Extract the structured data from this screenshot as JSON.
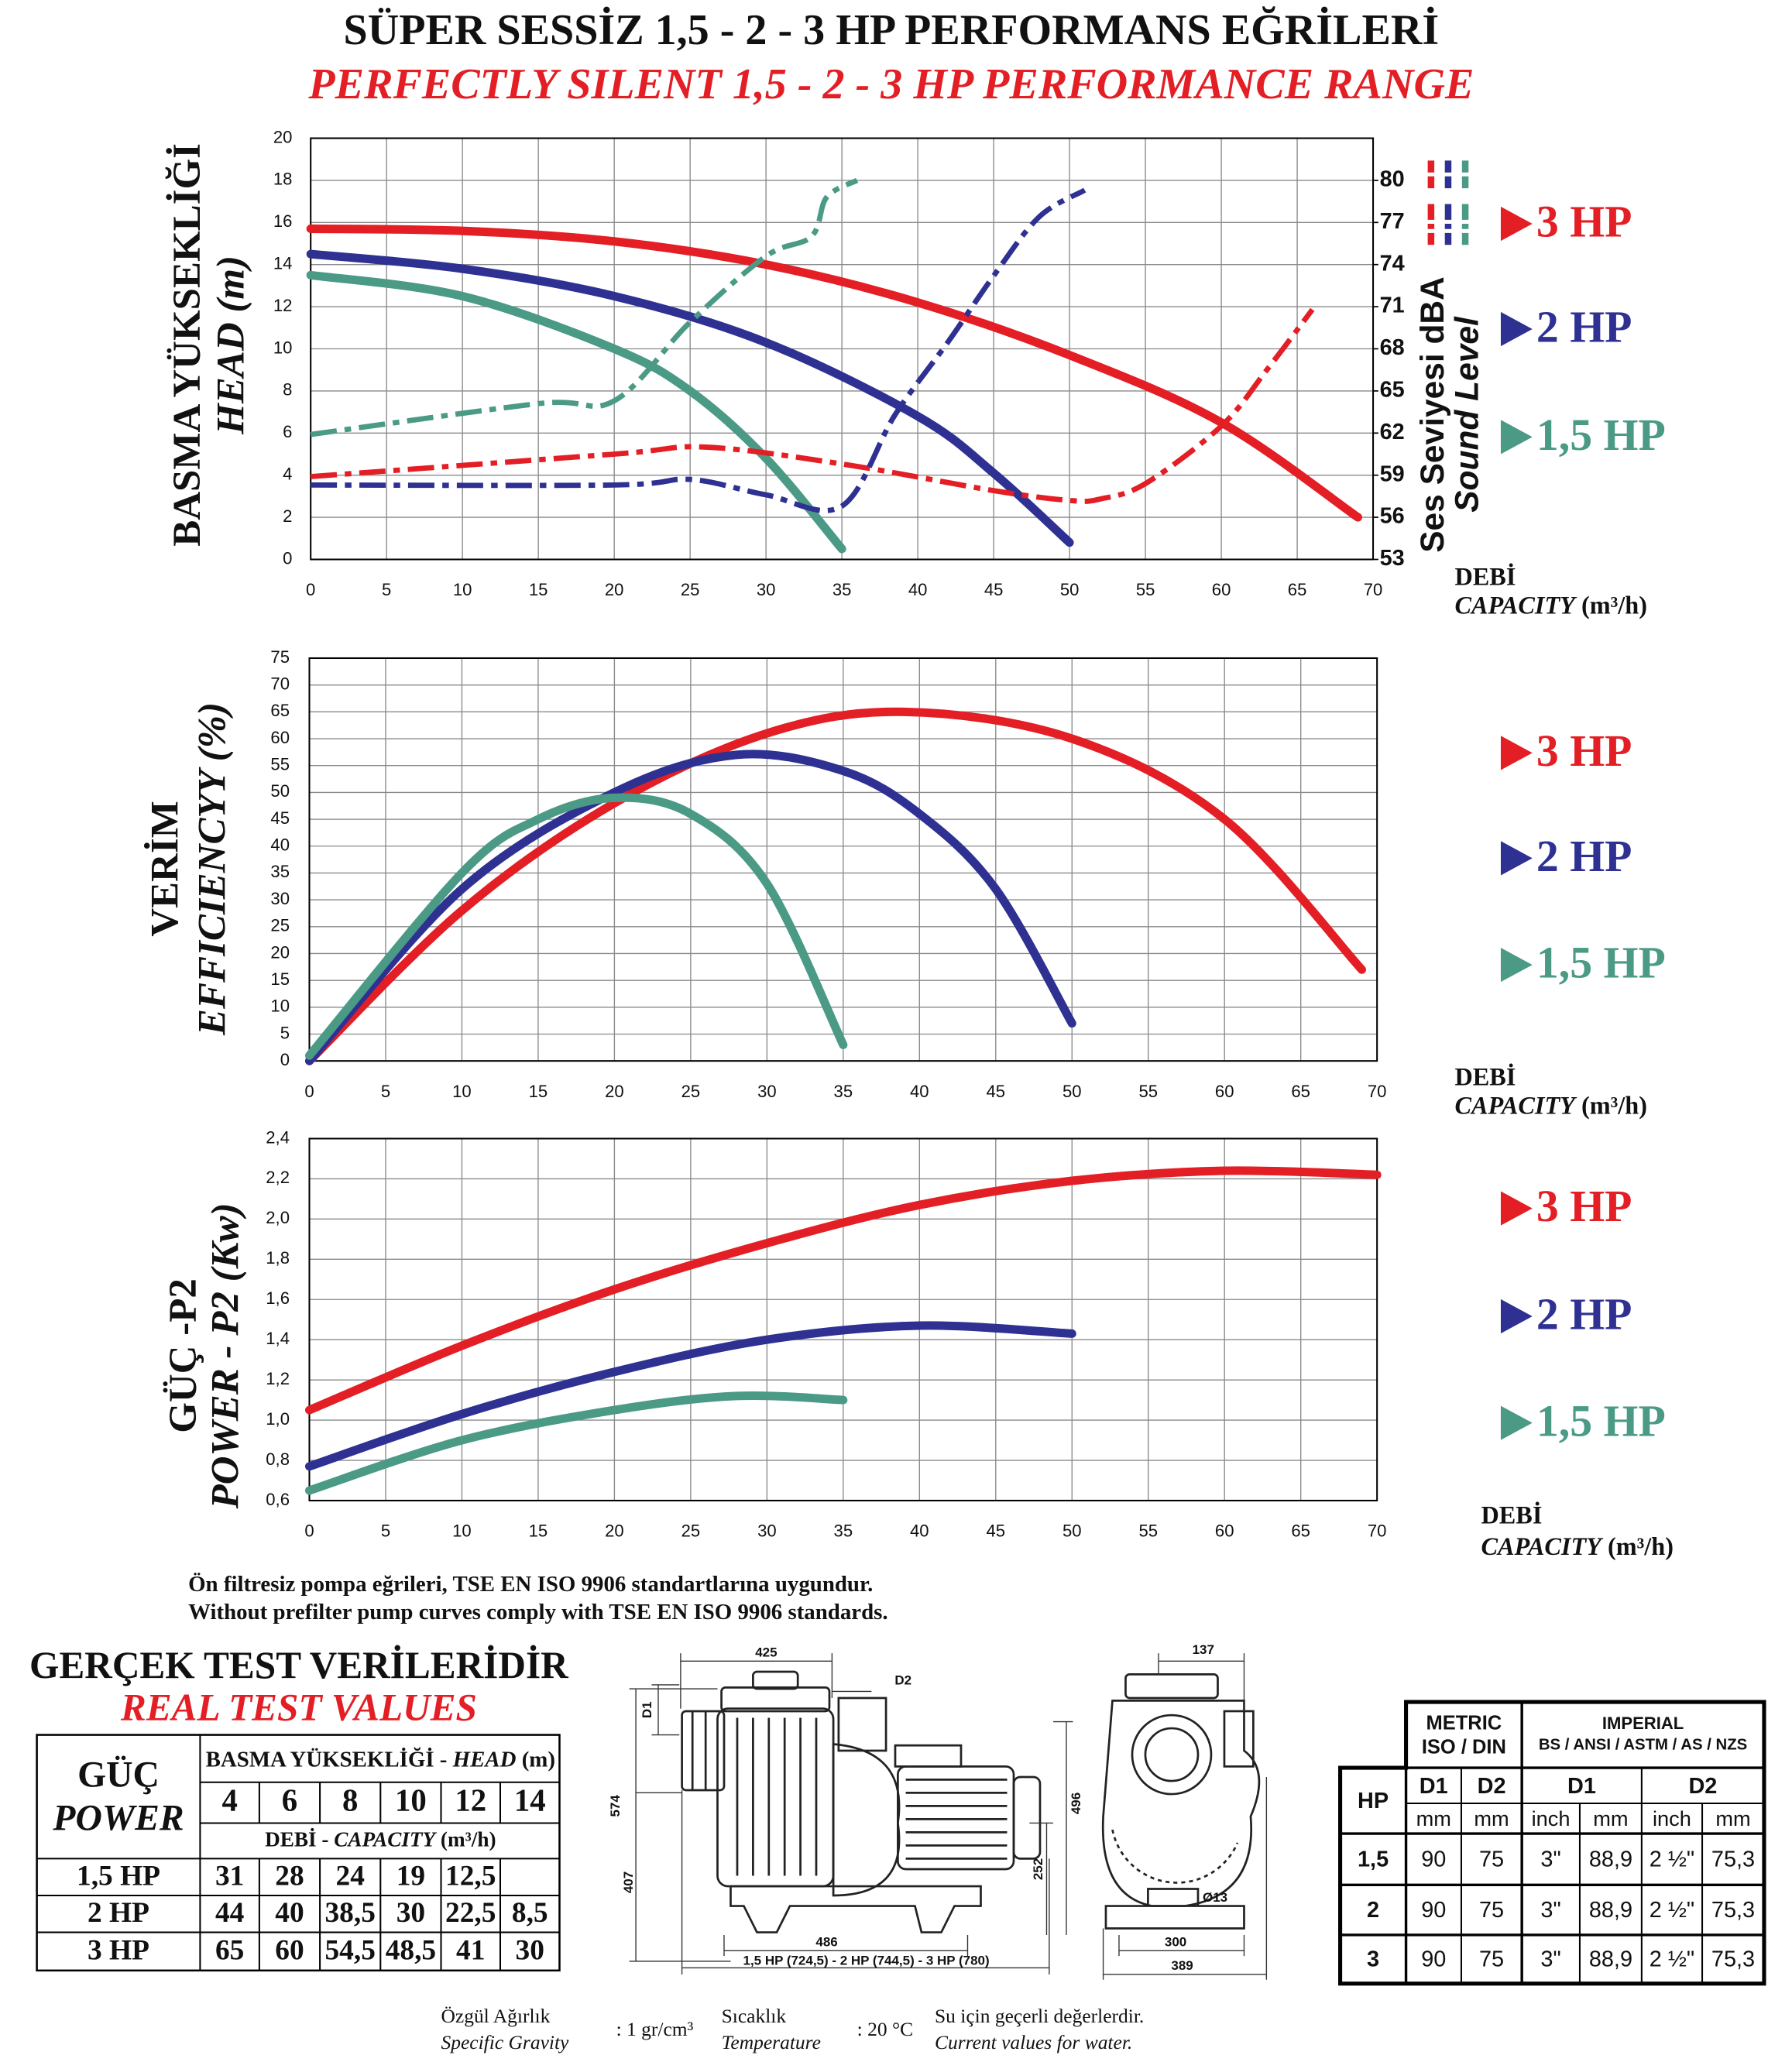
{
  "title": "SÜPER SESSİZ 1,5 - 2 - 3 HP PERFORMANS EĞRİLERİ",
  "subtitle": "PERFECTLY SILENT 1,5 - 2 - 3 HP PERFORMANCE RANGE",
  "chart_data": [
    {
      "type": "line",
      "y_label": "BASMA YÜKSEKLİĞİ",
      "y_label_en": "HEAD (m)",
      "y2_label": "Ses Seviyesi dBA",
      "y2_label_en": "Sound Level",
      "x_label": "DEBİ",
      "x_label_en": "CAPACITY",
      "x_unit": "(m³/h)",
      "xlim": [
        0,
        70
      ],
      "xticks": [
        0,
        5,
        10,
        15,
        20,
        25,
        30,
        35,
        40,
        45,
        50,
        55,
        60,
        65,
        70
      ],
      "ylim": [
        0,
        20
      ],
      "yticks": [
        0,
        2,
        4,
        6,
        8,
        10,
        12,
        14,
        16,
        18,
        20
      ],
      "y2lim": [
        53,
        83
      ],
      "y2ticks": [
        53,
        56,
        59,
        62,
        65,
        68,
        71,
        74,
        77,
        80
      ],
      "grid": true,
      "series": [
        {
          "name": "3 HP",
          "color": "#e31e24",
          "x": [
            0,
            10,
            20,
            30,
            40,
            50,
            60,
            69
          ],
          "values": [
            15.7,
            15.6,
            15.1,
            14,
            12.2,
            9.7,
            6.5,
            2.0
          ]
        },
        {
          "name": "2 HP",
          "color": "#2e3192",
          "x": [
            0,
            10,
            20,
            30,
            40,
            45,
            50
          ],
          "values": [
            14.5,
            13.8,
            12.5,
            10.3,
            6.8,
            4.1,
            0.8
          ]
        },
        {
          "name": "1,5 HP",
          "color": "#4a9a86",
          "x": [
            0,
            10,
            20,
            25,
            30,
            35
          ],
          "values": [
            13.5,
            12.5,
            10,
            8,
            4.8,
            0.5
          ]
        },
        {
          "color": "#e31e24",
          "axis": "y2",
          "style": "dash-dot",
          "x": [
            0,
            20,
            26,
            35,
            45,
            50,
            52,
            55,
            60,
            63,
            66
          ],
          "values": [
            58.9,
            60.5,
            61,
            59.8,
            57.9,
            57.2,
            57.3,
            58.4,
            62.5,
            66.5,
            70.8
          ]
        },
        {
          "color": "#2e3192",
          "axis": "y2",
          "style": "dash-dot",
          "x": [
            0,
            20,
            25,
            30,
            35,
            38.5,
            42,
            45,
            48,
            51
          ],
          "values": [
            58.3,
            58.3,
            58.7,
            57.6,
            56.8,
            63.3,
            68.5,
            73.2,
            77.4,
            79.3
          ]
        },
        {
          "color": "#4a9a86",
          "axis": "y2",
          "style": "dash-dot",
          "x": [
            0,
            15,
            20,
            25,
            30,
            33,
            34,
            36
          ],
          "values": [
            61.9,
            64.1,
            64.3,
            69.9,
            74.6,
            76,
            78.8,
            80
          ]
        }
      ]
    },
    {
      "type": "line",
      "y_label": "VERİM",
      "y_label_en": "EFFICIENCYY (%)",
      "x_label": "DEBİ",
      "x_label_en": "CAPACITY",
      "x_unit": "(m³/h)",
      "xlim": [
        0,
        70
      ],
      "xticks": [
        0,
        5,
        10,
        15,
        20,
        25,
        30,
        35,
        40,
        45,
        50,
        55,
        60,
        65,
        70
      ],
      "ylim": [
        0,
        75
      ],
      "yticks": [
        0,
        5,
        10,
        15,
        20,
        25,
        30,
        35,
        40,
        45,
        50,
        55,
        60,
        65,
        70,
        75
      ],
      "grid": true,
      "series": [
        {
          "name": "3 HP",
          "color": "#e31e24",
          "x": [
            0,
            10,
            20,
            30,
            39,
            50,
            60,
            69
          ],
          "values": [
            0,
            28,
            48,
            61,
            65,
            60,
            45,
            17
          ]
        },
        {
          "name": "2 HP",
          "color": "#2e3192",
          "x": [
            0,
            10,
            20,
            28,
            35,
            40,
            45,
            50
          ],
          "values": [
            0,
            32,
            50,
            57,
            54,
            46,
            32,
            7
          ]
        },
        {
          "name": "1,5 HP",
          "color": "#4a9a86",
          "x": [
            0,
            10,
            15,
            20,
            25,
            30,
            35
          ],
          "values": [
            1,
            35,
            45,
            49,
            46,
            33,
            3
          ]
        }
      ]
    },
    {
      "type": "line",
      "y_label": "GÜÇ -P2",
      "y_label_en": "POWER - P2 (Kw)",
      "x_label": "DEBİ",
      "x_label_en": "CAPACITY",
      "x_unit": "(m³/h)",
      "xlim": [
        0,
        70
      ],
      "xticks": [
        0,
        5,
        10,
        15,
        20,
        25,
        30,
        35,
        40,
        45,
        50,
        55,
        60,
        65,
        70
      ],
      "ylim": [
        0.6,
        2.4
      ],
      "yticks": [
        {
          "value": 0.6,
          "label": "0,6"
        },
        {
          "value": 0.8,
          "label": "0,8"
        },
        {
          "value": 1.0,
          "label": "1,0"
        },
        {
          "value": 1.2,
          "label": "1,2"
        },
        {
          "value": 1.4,
          "label": "1,4"
        },
        {
          "value": 1.6,
          "label": "1,6"
        },
        {
          "value": 1.8,
          "label": "1,8"
        },
        {
          "value": 2.0,
          "label": "2,0"
        },
        {
          "value": 2.2,
          "label": "2,2"
        },
        {
          "value": 2.4,
          "label": "2,4"
        }
      ],
      "grid": true,
      "series": [
        {
          "name": "3 HP",
          "color": "#e31e24",
          "x": [
            0,
            10,
            20,
            30,
            40,
            50,
            60,
            70
          ],
          "values": [
            1.05,
            1.37,
            1.65,
            1.88,
            2.07,
            2.19,
            2.24,
            2.22
          ]
        },
        {
          "name": "2 HP",
          "color": "#2e3192",
          "x": [
            0,
            10,
            20,
            30,
            40,
            50
          ],
          "values": [
            0.77,
            1.03,
            1.24,
            1.4,
            1.47,
            1.43
          ]
        },
        {
          "name": "1,5 HP",
          "color": "#4a9a86",
          "x": [
            0,
            10,
            20,
            28,
            35
          ],
          "values": [
            0.65,
            0.9,
            1.05,
            1.12,
            1.1
          ]
        }
      ]
    }
  ],
  "notes": [
    "Ön filtresiz pompa eğrileri, TSE EN ISO 9906 standartlarına uygundur.",
    "Without prefilter pump curves comply with TSE EN ISO 9906 standards."
  ],
  "test_table": {
    "title": "GERÇEK TEST VERİLERİDİR",
    "subtitle": "REAL TEST VALUES",
    "power_label": "GÜÇ",
    "power_label_en": "POWER",
    "head_label": "BASMA YÜKSEKLİĞİ -",
    "head_label_en": "HEAD",
    "head_unit": "(m)",
    "heads": [
      4,
      6,
      8,
      10,
      12,
      14
    ],
    "capacity_label": "DEBİ -",
    "capacity_label_en": "CAPACITY",
    "capacity_unit": "(m³/h)",
    "rows": [
      [
        "1,5 HP",
        31,
        28,
        24,
        19,
        "12,5",
        null
      ],
      [
        "2 HP",
        44,
        40,
        "38,5",
        30,
        "22,5",
        "8,5"
      ],
      [
        "3 HP",
        65,
        60,
        "54,5",
        "48,5",
        41,
        30
      ]
    ]
  },
  "drawing": {
    "width_top": 425,
    "d1": "D1",
    "d2": "D2",
    "h_total": 574,
    "h_inlet": 407,
    "h_motor": 496,
    "h_outlet": 252,
    "base": 486,
    "length": "1,5 HP (724,5) - 2 HP (744,5) - 3 HP (780)",
    "front_top": 137,
    "hole": "Ø13",
    "front_base": 300,
    "front_width": 389
  },
  "dimension_table": {
    "metric": "METRIC",
    "metric_std": "ISO / DIN",
    "imperial": "IMPERIAL",
    "imperial_std": "BS / ANSI / ASTM / AS /  NZS",
    "hp": "HP",
    "columns": [
      "D1",
      "D2",
      "D1",
      "D2"
    ],
    "units": [
      "mm",
      "mm",
      "inch",
      "mm",
      "inch",
      "mm"
    ],
    "rows": [
      [
        "1,5",
        90,
        75,
        "3\"",
        "88,9",
        "2 ½\"",
        "75,3"
      ],
      [
        "2",
        90,
        75,
        "3\"",
        "88,9",
        "2 ½\"",
        "75,3"
      ],
      [
        "3",
        90,
        75,
        "3\"",
        "88,9",
        "2 ½\"",
        "75,3"
      ]
    ]
  },
  "footer": {
    "gravity_label": "Özgül Ağırlık",
    "gravity_label_en": "Specific Gravity",
    "gravity_value": ": 1 gr/cm³",
    "temp_label": "Sıcaklık",
    "temp_label_en": "Temperature",
    "temp_value": ": 20 °C",
    "note": "Su için geçerli değerlerdir.",
    "note_en": "Current values for water."
  }
}
